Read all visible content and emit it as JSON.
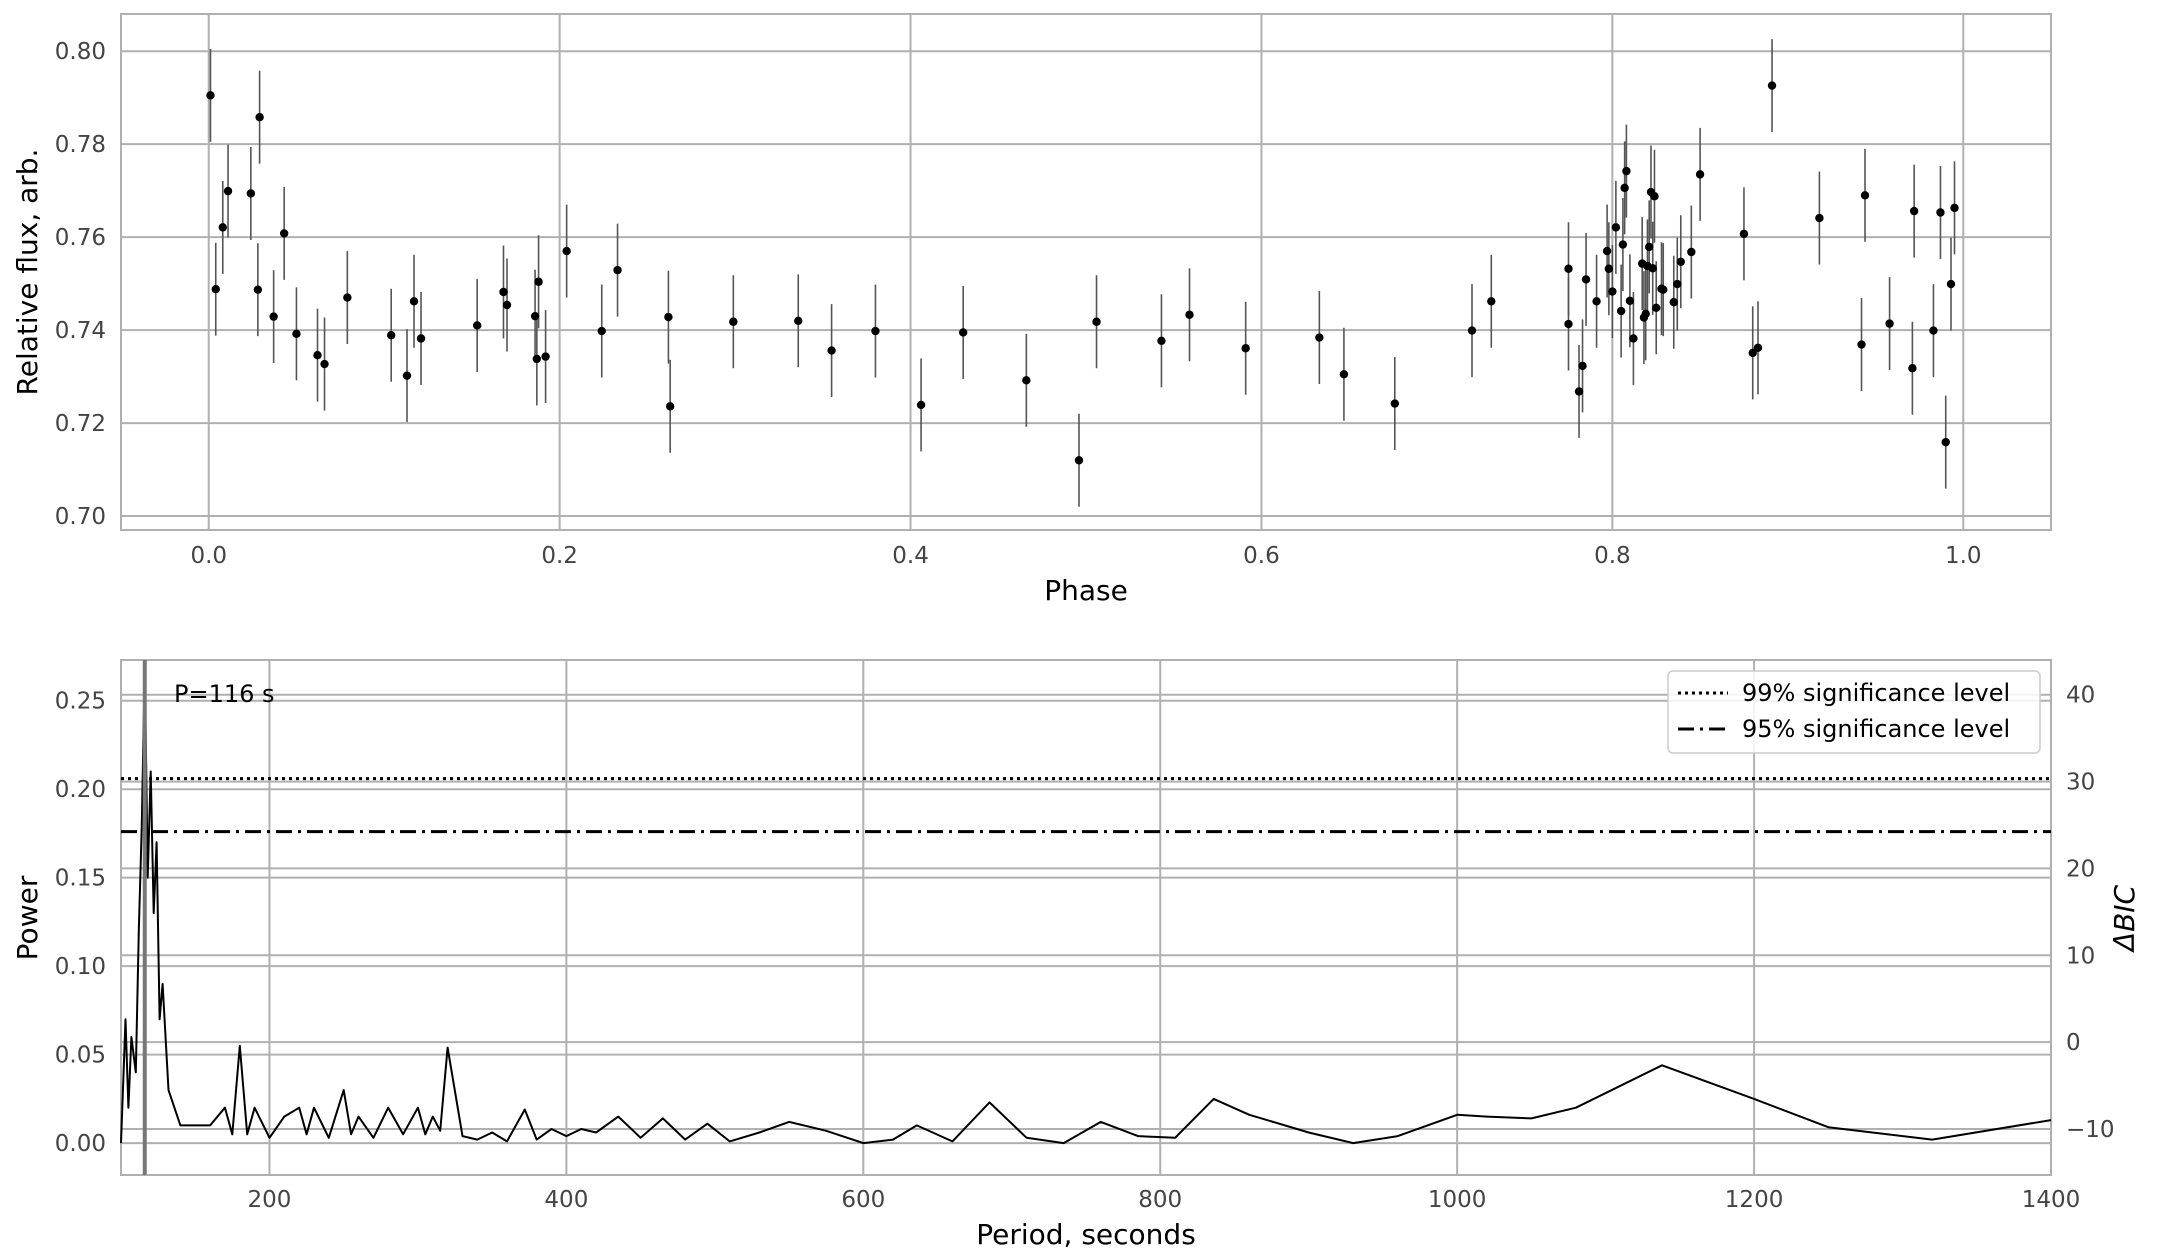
{
  "chart_data": [
    {
      "type": "scatter",
      "xlabel": "Phase",
      "ylabel": "Relative flux, arb.",
      "xlim": [
        -0.05,
        1.05
      ],
      "ylim": [
        0.697,
        0.808
      ],
      "xticks": [
        "0.0",
        "0.2",
        "0.4",
        "0.6",
        "0.8",
        "1.0"
      ],
      "yticks": [
        "0.70",
        "0.72",
        "0.74",
        "0.76",
        "0.78",
        "0.80"
      ],
      "grid": true,
      "marker_color": "#000000",
      "errorbar_color": "#555555",
      "error": 0.01,
      "points": [
        [
          0.001,
          0.7905
        ],
        [
          0.004,
          0.7488
        ],
        [
          0.008,
          0.7621
        ],
        [
          0.011,
          0.7699
        ],
        [
          0.024,
          0.7694
        ],
        [
          0.028,
          0.7487
        ],
        [
          0.029,
          0.7858
        ],
        [
          0.037,
          0.7429
        ],
        [
          0.043,
          0.7608
        ],
        [
          0.05,
          0.7392
        ],
        [
          0.062,
          0.7346
        ],
        [
          0.066,
          0.7327
        ],
        [
          0.079,
          0.747
        ],
        [
          0.104,
          0.7389
        ],
        [
          0.113,
          0.7302
        ],
        [
          0.117,
          0.7462
        ],
        [
          0.121,
          0.7382
        ],
        [
          0.153,
          0.741
        ],
        [
          0.168,
          0.7482
        ],
        [
          0.17,
          0.7454
        ],
        [
          0.186,
          0.743
        ],
        [
          0.187,
          0.7338
        ],
        [
          0.188,
          0.7504
        ],
        [
          0.192,
          0.7343
        ],
        [
          0.204,
          0.757
        ],
        [
          0.224,
          0.7398
        ],
        [
          0.233,
          0.7529
        ],
        [
          0.262,
          0.7428
        ],
        [
          0.263,
          0.7236
        ],
        [
          0.299,
          0.7418
        ],
        [
          0.336,
          0.742
        ],
        [
          0.355,
          0.7356
        ],
        [
          0.38,
          0.7398
        ],
        [
          0.406,
          0.7239
        ],
        [
          0.43,
          0.7395
        ],
        [
          0.466,
          0.7292
        ],
        [
          0.496,
          0.712
        ],
        [
          0.506,
          0.7418
        ],
        [
          0.543,
          0.7377
        ],
        [
          0.559,
          0.7433
        ],
        [
          0.591,
          0.7361
        ],
        [
          0.633,
          0.7384
        ],
        [
          0.647,
          0.7305
        ],
        [
          0.676,
          0.7242
        ],
        [
          0.72,
          0.7399
        ],
        [
          0.731,
          0.7462
        ],
        [
          0.775,
          0.7532
        ],
        [
          0.775,
          0.7413
        ],
        [
          0.781,
          0.7268
        ],
        [
          0.783,
          0.7323
        ],
        [
          0.785,
          0.7509
        ],
        [
          0.791,
          0.7462
        ],
        [
          0.797,
          0.757
        ],
        [
          0.798,
          0.7532
        ],
        [
          0.8,
          0.7483
        ],
        [
          0.802,
          0.7621
        ],
        [
          0.805,
          0.7441
        ],
        [
          0.806,
          0.7584
        ],
        [
          0.807,
          0.7706
        ],
        [
          0.808,
          0.7742
        ],
        [
          0.81,
          0.7463
        ],
        [
          0.812,
          0.7382
        ],
        [
          0.817,
          0.7543
        ],
        [
          0.818,
          0.7427
        ],
        [
          0.819,
          0.7435
        ],
        [
          0.82,
          0.7538
        ],
        [
          0.821,
          0.7579
        ],
        [
          0.822,
          0.7697
        ],
        [
          0.823,
          0.7533
        ],
        [
          0.824,
          0.7688
        ],
        [
          0.825,
          0.7448
        ],
        [
          0.828,
          0.7489
        ],
        [
          0.829,
          0.7487
        ],
        [
          0.835,
          0.746
        ],
        [
          0.837,
          0.7499
        ],
        [
          0.839,
          0.7547
        ],
        [
          0.845,
          0.7568
        ],
        [
          0.85,
          0.7735
        ],
        [
          0.875,
          0.7607
        ],
        [
          0.88,
          0.7351
        ],
        [
          0.883,
          0.7362
        ],
        [
          0.891,
          0.7926
        ],
        [
          0.918,
          0.7641
        ],
        [
          0.942,
          0.7369
        ],
        [
          0.944,
          0.769
        ],
        [
          0.958,
          0.7414
        ],
        [
          0.971,
          0.7318
        ],
        [
          0.972,
          0.7656
        ],
        [
          0.983,
          0.7399
        ],
        [
          0.987,
          0.7653
        ],
        [
          0.99,
          0.7159
        ],
        [
          0.993,
          0.7499
        ],
        [
          0.995,
          0.7663
        ]
      ]
    },
    {
      "type": "line",
      "xlabel": "Period, seconds",
      "ylabel": "Power",
      "y2label": "ΔBIC",
      "xlim": [
        100,
        1400
      ],
      "ylim": [
        -0.018,
        0.273
      ],
      "y2lim": [
        -15.3,
        44.0
      ],
      "xticks": [
        "200",
        "400",
        "600",
        "800",
        "1000",
        "1200",
        "1400"
      ],
      "yticks": [
        "0.00",
        "0.05",
        "0.10",
        "0.15",
        "0.20",
        "0.25"
      ],
      "y2ticks": [
        "−10",
        "0",
        "10",
        "20",
        "30",
        "40"
      ],
      "grid": true,
      "legend_position": "top-right",
      "annotation": "P=116 s",
      "best_period": 116,
      "series": [
        {
          "name": "99% significance level",
          "style": "dotted",
          "value": 0.206
        },
        {
          "name": "95% significance level",
          "style": "dashdot",
          "value": 0.176
        }
      ],
      "periodogram": {
        "x": [
          100,
          103,
          105,
          107,
          110,
          112,
          114,
          116,
          118,
          120,
          122,
          124,
          126,
          128,
          132,
          140,
          150,
          160,
          170,
          175,
          180,
          185,
          190,
          200,
          210,
          220,
          225,
          230,
          240,
          250,
          255,
          260,
          270,
          280,
          290,
          300,
          305,
          310,
          315,
          320,
          330,
          340,
          350,
          360,
          372,
          380,
          390,
          400,
          410,
          420,
          435,
          450,
          465,
          480,
          495,
          510,
          530,
          550,
          575,
          600,
          620,
          636,
          660,
          685,
          710,
          735,
          760,
          785,
          810,
          836,
          860,
          900,
          930,
          960,
          1000,
          1020,
          1050,
          1080,
          1138,
          1200,
          1250,
          1320,
          1400
        ],
        "y": [
          0.0,
          0.07,
          0.02,
          0.06,
          0.04,
          0.12,
          0.18,
          0.27,
          0.15,
          0.21,
          0.13,
          0.17,
          0.07,
          0.09,
          0.03,
          0.01,
          0.01,
          0.01,
          0.02,
          0.005,
          0.055,
          0.005,
          0.02,
          0.003,
          0.015,
          0.02,
          0.005,
          0.02,
          0.003,
          0.03,
          0.005,
          0.015,
          0.003,
          0.02,
          0.005,
          0.02,
          0.005,
          0.015,
          0.007,
          0.054,
          0.004,
          0.002,
          0.006,
          0.001,
          0.019,
          0.002,
          0.008,
          0.004,
          0.008,
          0.006,
          0.015,
          0.003,
          0.014,
          0.002,
          0.011,
          0.001,
          0.006,
          0.012,
          0.007,
          0.0,
          0.002,
          0.01,
          0.001,
          0.023,
          0.003,
          0.0,
          0.012,
          0.004,
          0.003,
          0.025,
          0.016,
          0.006,
          0.0,
          0.004,
          0.016,
          0.015,
          0.014,
          0.02,
          0.044,
          0.025,
          0.009,
          0.002,
          0.013
        ]
      }
    }
  ]
}
